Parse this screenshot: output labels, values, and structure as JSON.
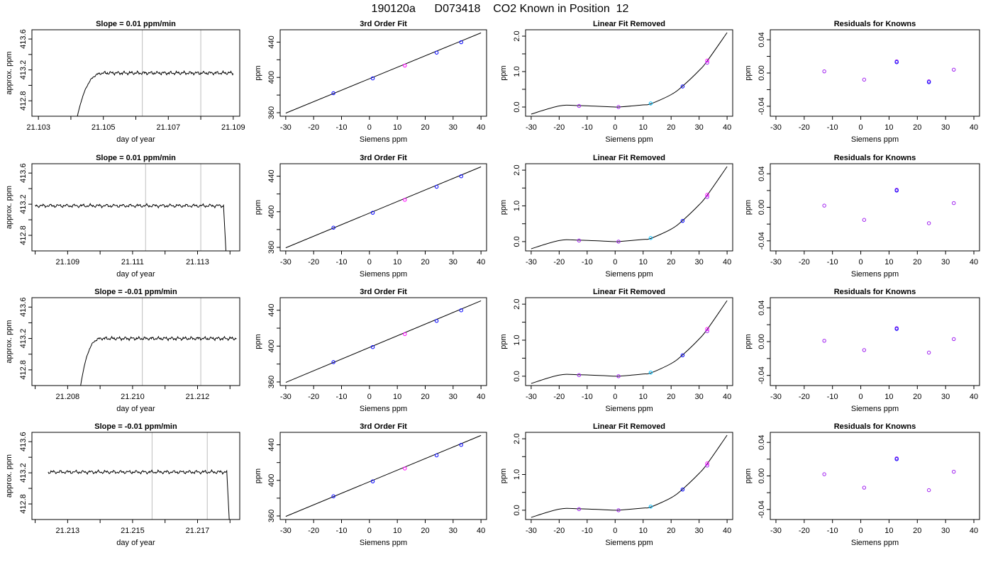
{
  "title": "190120a      D073418    CO2 Known in Position  12",
  "colors": {
    "trace": "#000000",
    "guide": "#bebebe",
    "fit": "#000000",
    "point_a": "#0000ff",
    "point_b": "#a020f0",
    "point_c": "#00bfff",
    "point_d": "#ff00ff"
  },
  "chart_data": [
    {
      "type": "line",
      "row": 0,
      "col": 0,
      "title": "Slope =  0.01  ppm/min",
      "xlabel": "day of year",
      "ylabel": "approx. ppm",
      "xlim": [
        21.1028,
        21.1092
      ],
      "ylim": [
        412.6,
        413.72
      ],
      "xticks": [
        21.103,
        21.104,
        21.105,
        21.106,
        21.107,
        21.108,
        21.109
      ],
      "xtick_labels": [
        "21.103",
        "",
        "21.105",
        "",
        "21.107",
        "",
        "21.109"
      ],
      "yticks": [
        412.8,
        413.0,
        413.2,
        413.4,
        413.6
      ],
      "ytick_labels": [
        "412.8",
        "",
        "413.2",
        "",
        "413.6"
      ],
      "vlines": [
        21.1062,
        21.108
      ],
      "trace": {
        "start": 21.1042,
        "end": 21.109,
        "rise_from": 412.6,
        "level": 413.16,
        "settle": 21.1051,
        "tail_to": null
      }
    },
    {
      "type": "line",
      "row": 1,
      "col": 0,
      "title": "Slope =  0.01  ppm/min",
      "xlabel": "day of year",
      "ylabel": "approx. ppm",
      "xlim": [
        21.1079,
        21.1143
      ],
      "ylim": [
        412.6,
        413.72
      ],
      "xticks": [
        21.108,
        21.109,
        21.11,
        21.111,
        21.112,
        21.113,
        21.114
      ],
      "xtick_labels": [
        "",
        "21.109",
        "",
        "21.111",
        "",
        "21.113",
        ""
      ],
      "yticks": [
        412.8,
        413.0,
        413.2,
        413.4,
        413.6
      ],
      "ytick_labels": [
        "412.8",
        "",
        "413.2",
        "",
        "413.6"
      ],
      "vlines": [
        21.1114,
        21.1131
      ],
      "trace": {
        "start": 21.108,
        "end": 21.1138,
        "rise_from": null,
        "level": 413.18,
        "settle": null,
        "tail_to": 21.1139
      }
    },
    {
      "type": "line",
      "row": 2,
      "col": 0,
      "title": "Slope =  -0.01  ppm/min",
      "xlabel": "day of year",
      "ylabel": "approx. ppm",
      "xlim": [
        21.2069,
        21.2133
      ],
      "ylim": [
        412.6,
        413.72
      ],
      "xticks": [
        21.207,
        21.208,
        21.209,
        21.21,
        21.211,
        21.212,
        21.213
      ],
      "xtick_labels": [
        "",
        "21.208",
        "",
        "21.210",
        "",
        "21.212",
        ""
      ],
      "yticks": [
        412.8,
        413.0,
        413.2,
        413.4,
        413.6
      ],
      "ytick_labels": [
        "412.8",
        "",
        "413.2",
        "",
        "413.6"
      ],
      "vlines": [
        21.2103,
        21.2121
      ],
      "trace": {
        "start": 21.2084,
        "end": 21.2132,
        "rise_from": 412.6,
        "level": 413.2,
        "settle": 21.2091,
        "tail_to": null
      }
    },
    {
      "type": "line",
      "row": 3,
      "col": 0,
      "title": "Slope =  -0.01  ppm/min",
      "xlabel": "day of year",
      "ylabel": "approx. ppm",
      "xlim": [
        21.2119,
        21.2183
      ],
      "ylim": [
        412.6,
        413.72
      ],
      "xticks": [
        21.212,
        21.213,
        21.214,
        21.215,
        21.216,
        21.217,
        21.218
      ],
      "xtick_labels": [
        "",
        "21.213",
        "",
        "21.215",
        "",
        "21.217",
        ""
      ],
      "yticks": [
        412.8,
        413.0,
        413.2,
        413.4,
        413.6
      ],
      "ytick_labels": [
        "412.8",
        "",
        "413.2",
        "",
        "413.6"
      ],
      "vlines": [
        21.2156,
        21.2173
      ],
      "trace": {
        "start": 21.2124,
        "end": 21.2179,
        "rise_from": null,
        "level": 413.21,
        "settle": null,
        "tail_to": 21.218
      }
    },
    {
      "type": "scatter",
      "row": 0,
      "col": 1,
      "title": "3rd Order Fit",
      "xlabel": "Siemens ppm",
      "ylabel": "ppm",
      "xlim": [
        -32,
        42
      ],
      "ylim": [
        356,
        454
      ],
      "xticks": [
        -30,
        -20,
        -10,
        0,
        10,
        20,
        30,
        40
      ],
      "xtick_labels": [
        "-30",
        "-20",
        "-10",
        "0",
        "10",
        "20",
        "30",
        "40"
      ],
      "yticks": [
        360,
        380,
        400,
        420,
        440
      ],
      "ytick_labels": [
        "360",
        "",
        "400",
        "",
        "440"
      ],
      "fit_line": {
        "x": [
          -30,
          40
        ],
        "y": [
          359.5,
          450.5
        ]
      },
      "x": [
        -12.9,
        1.2,
        12.7,
        24.1,
        32.9
      ],
      "y": [
        382.1,
        398.9,
        413.4,
        428.1,
        439.9
      ]
    },
    {
      "type": "scatter",
      "row": 1,
      "col": 1,
      "title": "3rd Order Fit",
      "xlabel": "Siemens ppm",
      "ylabel": "ppm",
      "xlim": [
        -32,
        42
      ],
      "ylim": [
        356,
        454
      ],
      "xticks": [
        -30,
        -20,
        -10,
        0,
        10,
        20,
        30,
        40
      ],
      "xtick_labels": [
        "-30",
        "-20",
        "-10",
        "0",
        "10",
        "20",
        "30",
        "40"
      ],
      "yticks": [
        360,
        380,
        400,
        420,
        440
      ],
      "ytick_labels": [
        "360",
        "",
        "400",
        "",
        "440"
      ],
      "fit_line": {
        "x": [
          -30,
          40
        ],
        "y": [
          359.5,
          450.5
        ]
      },
      "x": [
        -12.9,
        1.2,
        12.7,
        24.1,
        32.9
      ],
      "y": [
        382.1,
        398.9,
        413.4,
        428.1,
        439.9
      ]
    },
    {
      "type": "scatter",
      "row": 2,
      "col": 1,
      "title": "3rd Order Fit",
      "xlabel": "Siemens ppm",
      "ylabel": "ppm",
      "xlim": [
        -32,
        42
      ],
      "ylim": [
        356,
        454
      ],
      "xticks": [
        -30,
        -20,
        -10,
        0,
        10,
        20,
        30,
        40
      ],
      "xtick_labels": [
        "-30",
        "-20",
        "-10",
        "0",
        "10",
        "20",
        "30",
        "40"
      ],
      "yticks": [
        360,
        380,
        400,
        420,
        440
      ],
      "ytick_labels": [
        "360",
        "",
        "400",
        "",
        "440"
      ],
      "fit_line": {
        "x": [
          -30,
          40
        ],
        "y": [
          359.5,
          450.5
        ]
      },
      "x": [
        -12.9,
        1.2,
        12.7,
        24.1,
        32.9
      ],
      "y": [
        382.1,
        398.9,
        413.4,
        428.1,
        439.9
      ]
    },
    {
      "type": "scatter",
      "row": 3,
      "col": 1,
      "title": "3rd Order Fit",
      "xlabel": "Siemens ppm",
      "ylabel": "ppm",
      "xlim": [
        -32,
        42
      ],
      "ylim": [
        356,
        454
      ],
      "xticks": [
        -30,
        -20,
        -10,
        0,
        10,
        20,
        30,
        40
      ],
      "xtick_labels": [
        "-30",
        "-20",
        "-10",
        "0",
        "10",
        "20",
        "30",
        "40"
      ],
      "yticks": [
        360,
        380,
        400,
        420,
        440
      ],
      "ytick_labels": [
        "360",
        "",
        "400",
        "",
        "440"
      ],
      "fit_line": {
        "x": [
          -30,
          40
        ],
        "y": [
          359.5,
          450.5
        ]
      },
      "x": [
        -12.9,
        1.2,
        12.7,
        24.1,
        32.9
      ],
      "y": [
        382.1,
        398.9,
        413.4,
        428.1,
        439.9
      ]
    },
    {
      "type": "scatter",
      "row": 0,
      "col": 2,
      "title": "Linear Fit Removed",
      "xlabel": "Siemens ppm",
      "ylabel": "ppm",
      "xlim": [
        -32,
        42
      ],
      "ylim": [
        -0.26,
        2.18
      ],
      "xticks": [
        -30,
        -20,
        -10,
        0,
        10,
        20,
        30,
        40
      ],
      "xtick_labels": [
        "-30",
        "-20",
        "-10",
        "0",
        "10",
        "20",
        "30",
        "40"
      ],
      "yticks": [
        0.0,
        0.5,
        1.0,
        1.5,
        2.0
      ],
      "ytick_labels": [
        "0.0",
        "",
        "1.0",
        "",
        "2.0"
      ],
      "fit_curve": {
        "x": [
          -30,
          -20,
          -12.9,
          0,
          1.2,
          10,
          12.7,
          20,
          24.1,
          30,
          32.9,
          40
        ],
        "y": [
          -0.2,
          0.03,
          0.04,
          0.0,
          0.0,
          0.06,
          0.09,
          0.35,
          0.59,
          1.03,
          1.3,
          2.1
        ]
      },
      "x": [
        -12.9,
        1.2,
        12.7,
        24.1,
        32.9,
        32.9
      ],
      "y": [
        0.03,
        0.0,
        0.1,
        0.58,
        1.25,
        1.31
      ],
      "point_colors": [
        "point_b",
        "point_b",
        "point_c",
        "point_a",
        "point_b",
        "point_d"
      ]
    },
    {
      "type": "scatter",
      "row": 1,
      "col": 2,
      "title": "Linear Fit Removed",
      "xlabel": "Siemens ppm",
      "ylabel": "ppm",
      "xlim": [
        -32,
        42
      ],
      "ylim": [
        -0.26,
        2.18
      ],
      "xticks": [
        -30,
        -20,
        -10,
        0,
        10,
        20,
        30,
        40
      ],
      "xtick_labels": [
        "-30",
        "-20",
        "-10",
        "0",
        "10",
        "20",
        "30",
        "40"
      ],
      "yticks": [
        0.0,
        0.5,
        1.0,
        1.5,
        2.0
      ],
      "ytick_labels": [
        "0.0",
        "",
        "1.0",
        "",
        "2.0"
      ],
      "fit_curve": {
        "x": [
          -30,
          -20,
          -12.9,
          0,
          1.2,
          10,
          12.7,
          20,
          24.1,
          30,
          32.9,
          40
        ],
        "y": [
          -0.2,
          0.03,
          0.04,
          0.0,
          0.0,
          0.06,
          0.09,
          0.35,
          0.59,
          1.03,
          1.3,
          2.1
        ]
      },
      "x": [
        -12.9,
        1.2,
        12.7,
        24.1,
        32.9,
        32.9
      ],
      "y": [
        0.03,
        0.0,
        0.1,
        0.58,
        1.25,
        1.31
      ],
      "point_colors": [
        "point_b",
        "point_b",
        "point_c",
        "point_a",
        "point_b",
        "point_d"
      ]
    },
    {
      "type": "scatter",
      "row": 2,
      "col": 2,
      "title": "Linear Fit Removed",
      "xlabel": "Siemens ppm",
      "ylabel": "ppm",
      "xlim": [
        -32,
        42
      ],
      "ylim": [
        -0.26,
        2.18
      ],
      "xticks": [
        -30,
        -20,
        -10,
        0,
        10,
        20,
        30,
        40
      ],
      "xtick_labels": [
        "-30",
        "-20",
        "-10",
        "0",
        "10",
        "20",
        "30",
        "40"
      ],
      "yticks": [
        0.0,
        0.5,
        1.0,
        1.5,
        2.0
      ],
      "ytick_labels": [
        "0.0",
        "",
        "1.0",
        "",
        "2.0"
      ],
      "fit_curve": {
        "x": [
          -30,
          -20,
          -12.9,
          0,
          1.2,
          10,
          12.7,
          20,
          24.1,
          30,
          32.9,
          40
        ],
        "y": [
          -0.2,
          0.03,
          0.04,
          0.0,
          0.0,
          0.06,
          0.09,
          0.35,
          0.59,
          1.03,
          1.3,
          2.1
        ]
      },
      "x": [
        -12.9,
        1.2,
        12.7,
        24.1,
        32.9,
        32.9
      ],
      "y": [
        0.03,
        0.0,
        0.1,
        0.58,
        1.25,
        1.31
      ],
      "point_colors": [
        "point_b",
        "point_b",
        "point_c",
        "point_a",
        "point_b",
        "point_d"
      ]
    },
    {
      "type": "scatter",
      "row": 3,
      "col": 2,
      "title": "Linear Fit Removed",
      "xlabel": "Siemens ppm",
      "ylabel": "ppm",
      "xlim": [
        -32,
        42
      ],
      "ylim": [
        -0.26,
        2.18
      ],
      "xticks": [
        -30,
        -20,
        -10,
        0,
        10,
        20,
        30,
        40
      ],
      "xtick_labels": [
        "-30",
        "-20",
        "-10",
        "0",
        "10",
        "20",
        "30",
        "40"
      ],
      "yticks": [
        0.0,
        0.5,
        1.0,
        1.5,
        2.0
      ],
      "ytick_labels": [
        "0.0",
        "",
        "1.0",
        "",
        "2.0"
      ],
      "fit_curve": {
        "x": [
          -30,
          -20,
          -12.9,
          0,
          1.2,
          10,
          12.7,
          20,
          24.1,
          30,
          32.9,
          40
        ],
        "y": [
          -0.2,
          0.03,
          0.04,
          0.0,
          0.0,
          0.06,
          0.09,
          0.35,
          0.59,
          1.03,
          1.3,
          2.1
        ]
      },
      "x": [
        -12.9,
        1.2,
        12.7,
        24.1,
        32.9,
        32.9
      ],
      "y": [
        0.03,
        0.0,
        0.1,
        0.58,
        1.25,
        1.31
      ],
      "point_colors": [
        "point_b",
        "point_b",
        "point_c",
        "point_a",
        "point_b",
        "point_d"
      ]
    },
    {
      "type": "scatter",
      "row": 0,
      "col": 3,
      "title": "Residuals for Knowns",
      "xlabel": "Siemens ppm",
      "ylabel": "ppm",
      "xlim": [
        -32,
        42
      ],
      "ylim": [
        -0.052,
        0.052
      ],
      "xticks": [
        -30,
        -20,
        -10,
        0,
        10,
        20,
        30,
        40
      ],
      "xtick_labels": [
        "-30",
        "-20",
        "-10",
        "0",
        "10",
        "20",
        "30",
        "40"
      ],
      "yticks": [
        -0.04,
        -0.02,
        0.0,
        0.02,
        0.04
      ],
      "ytick_labels": [
        "-0.04",
        "",
        "0.00",
        "",
        "0.04"
      ],
      "x": [
        -12.9,
        1.2,
        12.7,
        12.7,
        24.1,
        24.1,
        32.9
      ],
      "y": [
        0.002,
        -0.008,
        0.014,
        0.013,
        -0.01,
        -0.011,
        0.004
      ],
      "point_colors": [
        "point_b",
        "point_b",
        "point_b",
        "point_a",
        "point_b",
        "point_a",
        "point_b"
      ]
    },
    {
      "type": "scatter",
      "row": 1,
      "col": 3,
      "title": "Residuals for Knowns",
      "xlabel": "Siemens ppm",
      "ylabel": "ppm",
      "xlim": [
        -32,
        42
      ],
      "ylim": [
        -0.052,
        0.052
      ],
      "xticks": [
        -30,
        -20,
        -10,
        0,
        10,
        20,
        30,
        40
      ],
      "xtick_labels": [
        "-30",
        "-20",
        "-10",
        "0",
        "10",
        "20",
        "30",
        "40"
      ],
      "yticks": [
        -0.04,
        -0.02,
        0.0,
        0.02,
        0.04
      ],
      "ytick_labels": [
        "-0.04",
        "",
        "0.00",
        "",
        "0.04"
      ],
      "x": [
        -12.9,
        1.2,
        12.7,
        12.7,
        24.1,
        32.9
      ],
      "y": [
        0.002,
        -0.015,
        0.021,
        0.02,
        -0.019,
        0.005
      ],
      "point_colors": [
        "point_b",
        "point_b",
        "point_b",
        "point_a",
        "point_b",
        "point_b"
      ]
    },
    {
      "type": "scatter",
      "row": 2,
      "col": 3,
      "title": "Residuals for Knowns",
      "xlabel": "Siemens ppm",
      "ylabel": "ppm",
      "xlim": [
        -32,
        42
      ],
      "ylim": [
        -0.052,
        0.052
      ],
      "xticks": [
        -30,
        -20,
        -10,
        0,
        10,
        20,
        30,
        40
      ],
      "xtick_labels": [
        "-30",
        "-20",
        "-10",
        "0",
        "10",
        "20",
        "30",
        "40"
      ],
      "yticks": [
        -0.04,
        -0.02,
        0.0,
        0.02,
        0.04
      ],
      "ytick_labels": [
        "-0.04",
        "",
        "0.00",
        "",
        "0.04"
      ],
      "x": [
        -12.9,
        1.2,
        12.7,
        12.7,
        24.1,
        32.9
      ],
      "y": [
        0.001,
        -0.01,
        0.016,
        0.015,
        -0.013,
        0.003
      ],
      "point_colors": [
        "point_b",
        "point_b",
        "point_b",
        "point_a",
        "point_b",
        "point_b"
      ]
    },
    {
      "type": "scatter",
      "row": 3,
      "col": 3,
      "title": "Residuals for Knowns",
      "xlabel": "Siemens ppm",
      "ylabel": "ppm",
      "xlim": [
        -32,
        42
      ],
      "ylim": [
        -0.052,
        0.052
      ],
      "xticks": [
        -30,
        -20,
        -10,
        0,
        10,
        20,
        30,
        40
      ],
      "xtick_labels": [
        "-30",
        "-20",
        "-10",
        "0",
        "10",
        "20",
        "30",
        "40"
      ],
      "yticks": [
        -0.04,
        -0.02,
        0.0,
        0.02,
        0.04
      ],
      "ytick_labels": [
        "-0.04",
        "",
        "0.00",
        "",
        "0.04"
      ],
      "x": [
        -12.9,
        1.2,
        12.7,
        12.7,
        24.1,
        32.9
      ],
      "y": [
        0.002,
        -0.014,
        0.021,
        0.02,
        -0.017,
        0.005
      ],
      "point_colors": [
        "point_b",
        "point_b",
        "point_b",
        "point_a",
        "point_b",
        "point_b"
      ]
    }
  ]
}
